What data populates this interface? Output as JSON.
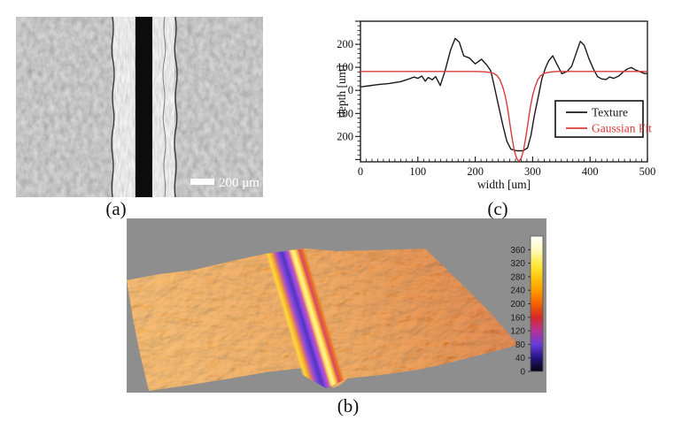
{
  "figure": {
    "captions": {
      "a": "(a)",
      "b": "(b)",
      "c": "(c)"
    },
    "panel_a": {
      "description": "grayscale micrograph of a vertical laser-machined groove with bright recast edges",
      "scale_bar_label": "200 μm"
    },
    "panel_b": {
      "description": "3D surface topography of the groove (orange surface, purple groove, yellow rims)",
      "background_color": "#8e8e8e",
      "colorbar": {
        "max_value": 400,
        "ticks": [
          360,
          320,
          280,
          240,
          200,
          160,
          120,
          80,
          40,
          0
        ]
      }
    }
  },
  "chart_data": {
    "type": "line",
    "title": "",
    "xlabel": "width [um]",
    "ylabel": "depth [um]",
    "xlim": [
      0,
      500
    ],
    "ylim": [
      -310,
      300
    ],
    "xticks": [
      0,
      100,
      200,
      300,
      400,
      500
    ],
    "yticks": [
      -200,
      -100,
      0,
      100,
      200
    ],
    "x_minor_step": 10,
    "y_minor_step": 20,
    "grid": false,
    "legend": {
      "position": "inside lower right",
      "entries": [
        {
          "label": "Texture",
          "color": "#1a1a1a"
        },
        {
          "label": "Gaussian Fit",
          "color": "#d93a3a"
        }
      ]
    },
    "series": [
      {
        "name": "Texture",
        "color": "#1a1a1a",
        "points": [
          [
            0,
            15
          ],
          [
            15,
            20
          ],
          [
            30,
            25
          ],
          [
            50,
            30
          ],
          [
            70,
            38
          ],
          [
            85,
            50
          ],
          [
            93,
            58
          ],
          [
            100,
            52
          ],
          [
            107,
            62
          ],
          [
            113,
            40
          ],
          [
            118,
            56
          ],
          [
            125,
            46
          ],
          [
            131,
            60
          ],
          [
            139,
            21
          ],
          [
            148,
            90
          ],
          [
            157,
            175
          ],
          [
            165,
            225
          ],
          [
            172,
            210
          ],
          [
            180,
            150
          ],
          [
            190,
            140
          ],
          [
            200,
            115
          ],
          [
            211,
            135
          ],
          [
            220,
            110
          ],
          [
            227,
            85
          ],
          [
            233,
            20
          ],
          [
            240,
            -60
          ],
          [
            248,
            -150
          ],
          [
            255,
            -220
          ],
          [
            262,
            -255
          ],
          [
            272,
            -262
          ],
          [
            283,
            -262
          ],
          [
            291,
            -250
          ],
          [
            297,
            -195
          ],
          [
            303,
            -110
          ],
          [
            310,
            -25
          ],
          [
            316,
            50
          ],
          [
            322,
            95
          ],
          [
            328,
            128
          ],
          [
            335,
            150
          ],
          [
            342,
            115
          ],
          [
            351,
            72
          ],
          [
            360,
            82
          ],
          [
            368,
            105
          ],
          [
            375,
            155
          ],
          [
            383,
            213
          ],
          [
            390,
            195
          ],
          [
            398,
            138
          ],
          [
            406,
            92
          ],
          [
            413,
            60
          ],
          [
            420,
            50
          ],
          [
            428,
            47
          ],
          [
            434,
            58
          ],
          [
            441,
            52
          ],
          [
            450,
            62
          ],
          [
            459,
            82
          ],
          [
            465,
            93
          ],
          [
            472,
            99
          ],
          [
            480,
            88
          ],
          [
            488,
            80
          ],
          [
            495,
            73
          ],
          [
            500,
            74
          ]
        ]
      },
      {
        "name": "Gaussian Fit",
        "color": "#d93a3a",
        "points": [
          [
            0,
            82
          ],
          [
            60,
            82
          ],
          [
            120,
            82
          ],
          [
            170,
            82
          ],
          [
            200,
            82
          ],
          [
            210,
            81
          ],
          [
            218,
            80
          ],
          [
            226,
            78
          ],
          [
            232,
            74
          ],
          [
            238,
            64
          ],
          [
            243,
            46
          ],
          [
            248,
            14
          ],
          [
            252,
            -22
          ],
          [
            256,
            -72
          ],
          [
            260,
            -140
          ],
          [
            264,
            -205
          ],
          [
            268,
            -262
          ],
          [
            272,
            -295
          ],
          [
            276,
            -308
          ],
          [
            280,
            -295
          ],
          [
            284,
            -262
          ],
          [
            288,
            -205
          ],
          [
            292,
            -140
          ],
          [
            296,
            -72
          ],
          [
            300,
            -22
          ],
          [
            304,
            14
          ],
          [
            309,
            46
          ],
          [
            314,
            64
          ],
          [
            320,
            74
          ],
          [
            326,
            78
          ],
          [
            334,
            80
          ],
          [
            342,
            82
          ],
          [
            400,
            82
          ],
          [
            500,
            82
          ]
        ]
      }
    ]
  }
}
